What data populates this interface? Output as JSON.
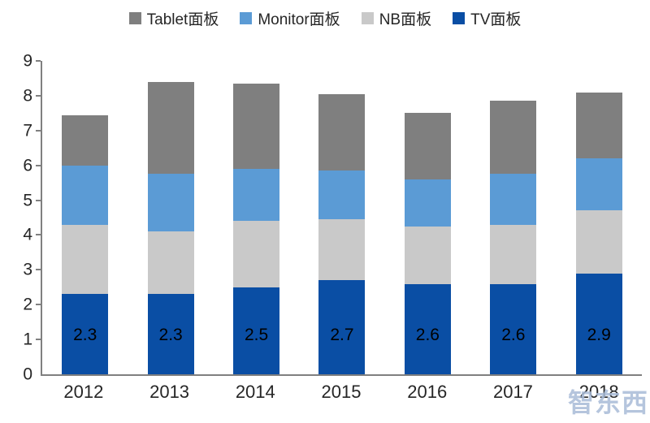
{
  "legend": {
    "items": [
      {
        "label": "Tablet面板",
        "color": "#7f7f7f"
      },
      {
        "label": "Monitor面板",
        "color": "#5b9bd5"
      },
      {
        "label": "NB面板",
        "color": "#c9c9c9"
      },
      {
        "label": "TV面板",
        "color": "#0a4ea4"
      }
    ]
  },
  "chart_data": {
    "type": "bar",
    "stacked": true,
    "title": "",
    "xlabel": "",
    "ylabel": "",
    "categories": [
      "2012",
      "2013",
      "2014",
      "2015",
      "2016",
      "2017",
      "2018"
    ],
    "series": [
      {
        "name": "TV面板",
        "color": "#0a4ea4",
        "values": [
          2.3,
          2.3,
          2.5,
          2.7,
          2.6,
          2.6,
          2.9
        ],
        "labels": [
          "2.3",
          "2.3",
          "2.5",
          "2.7",
          "2.6",
          "2.6",
          "2.9"
        ]
      },
      {
        "name": "NB面板",
        "color": "#c9c9c9",
        "values": [
          2.0,
          1.8,
          1.9,
          1.75,
          1.65,
          1.7,
          1.8
        ]
      },
      {
        "name": "Monitor面板",
        "color": "#5b9bd5",
        "values": [
          1.7,
          1.65,
          1.5,
          1.4,
          1.35,
          1.45,
          1.5
        ]
      },
      {
        "name": "Tablet面板",
        "color": "#7f7f7f",
        "values": [
          1.45,
          2.65,
          2.45,
          2.2,
          1.9,
          2.1,
          1.9
        ]
      }
    ],
    "totals": [
      7.45,
      8.4,
      8.35,
      8.05,
      7.5,
      7.85,
      8.1
    ],
    "ylim": [
      0,
      9
    ],
    "yticks": [
      0,
      1,
      2,
      3,
      4,
      5,
      6,
      7,
      8,
      9
    ],
    "grid": false,
    "legend_position": "top"
  },
  "watermark": {
    "text": "智东西",
    "color": "#a9bcd8"
  }
}
